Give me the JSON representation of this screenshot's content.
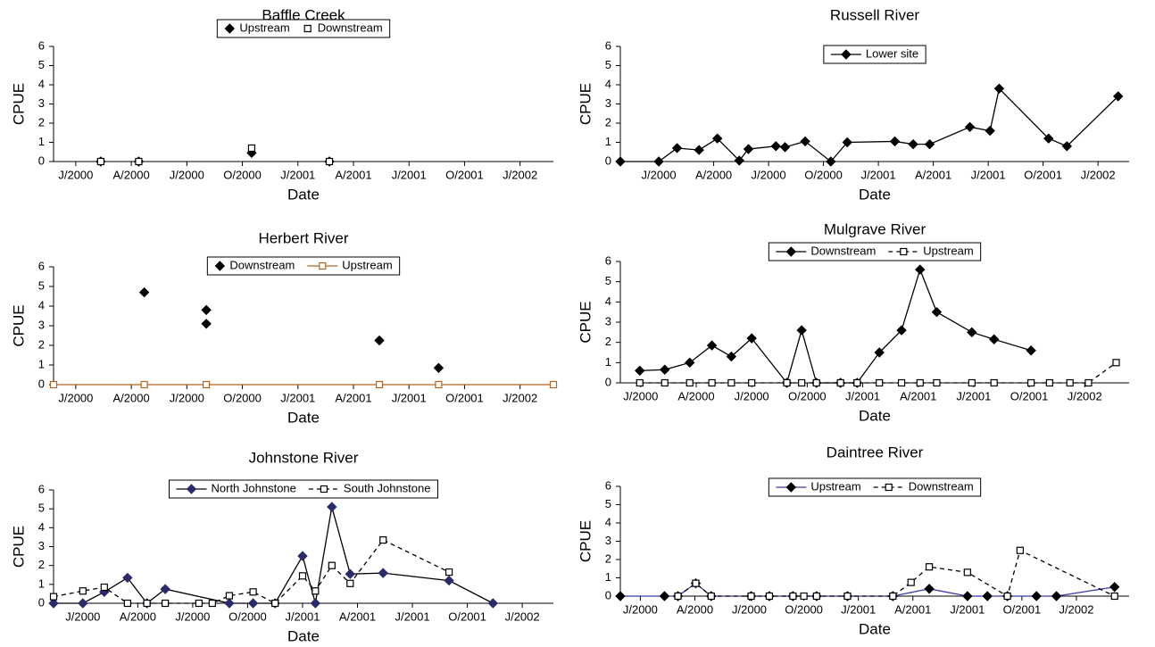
{
  "chart_data": [
    {
      "type": "scatter",
      "title": "Baffle Creek",
      "xlabel": "Date",
      "ylabel": "CPUE",
      "xlim": [
        -1.2,
        25.8
      ],
      "ylim": [
        0,
        6
      ],
      "yticks": [
        0,
        1,
        2,
        3,
        4,
        5,
        6
      ],
      "xticks": [
        {
          "value": 0,
          "label": "J/2000"
        },
        {
          "value": 3,
          "label": "A/2000"
        },
        {
          "value": 6,
          "label": "J/2000"
        },
        {
          "value": 9,
          "label": "O/2000"
        },
        {
          "value": 12,
          "label": "J/2001"
        },
        {
          "value": 15,
          "label": "A/2001"
        },
        {
          "value": 18,
          "label": "J/2001"
        },
        {
          "value": 21,
          "label": "O/2001"
        },
        {
          "value": 24,
          "label": "J/2002"
        }
      ],
      "series": [
        {
          "name": "Upstream",
          "color": "#000000",
          "marker": "diamond",
          "line": false,
          "x": [
            1.35,
            3.4,
            9.5,
            13.7
          ],
          "values": [
            0,
            0,
            0.45,
            0
          ]
        },
        {
          "name": "Downstream",
          "color": "#000000",
          "marker": "square",
          "line": false,
          "x": [
            1.35,
            3.4,
            9.5,
            13.7
          ],
          "values": [
            0,
            0,
            0.7,
            0
          ]
        }
      ]
    },
    {
      "type": "line",
      "title": "Russell River",
      "xlabel": "Date",
      "ylabel": "CPUE",
      "xlim": [
        -2.1,
        25.7
      ],
      "ylim": [
        0,
        6
      ],
      "yticks": [
        0,
        1,
        2,
        3,
        4,
        5,
        6
      ],
      "xticks": [
        {
          "value": 0,
          "label": "J/2000"
        },
        {
          "value": 3,
          "label": "A/2000"
        },
        {
          "value": 6,
          "label": "J/2000"
        },
        {
          "value": 9,
          "label": "O/2000"
        },
        {
          "value": 12,
          "label": "J/2001"
        },
        {
          "value": 15,
          "label": "A/2001"
        },
        {
          "value": 18,
          "label": "J/2001"
        },
        {
          "value": 21,
          "label": "O/2001"
        },
        {
          "value": 24,
          "label": "J/2002"
        }
      ],
      "series": [
        {
          "name": "Lower site",
          "color": "#000000",
          "marker": "diamond",
          "line": true,
          "x": [
            -2.1,
            0,
            1,
            2.2,
            3.2,
            4.4,
            4.9,
            6.4,
            6.9,
            8,
            9.4,
            10.3,
            12.9,
            13.9,
            14.8,
            17,
            18.1,
            18.6,
            21.3,
            22.3,
            25.1
          ],
          "values": [
            0,
            0,
            0.7,
            0.6,
            1.2,
            0.05,
            0.65,
            0.8,
            0.75,
            1.05,
            0,
            1.0,
            1.05,
            0.9,
            0.9,
            1.8,
            1.6,
            3.8,
            1.2,
            0.8,
            3.4
          ]
        }
      ]
    },
    {
      "type": "line",
      "title": "Herbert River",
      "xlabel": "Date",
      "ylabel": "CPUE",
      "xlim": [
        -1.2,
        25.8
      ],
      "ylim": [
        0,
        6
      ],
      "yticks": [
        0,
        1,
        2,
        3,
        4,
        5,
        6
      ],
      "xticks": [
        {
          "value": 0,
          "label": "J/2000"
        },
        {
          "value": 3,
          "label": "A/2000"
        },
        {
          "value": 6,
          "label": "J/2000"
        },
        {
          "value": 9,
          "label": "O/2000"
        },
        {
          "value": 12,
          "label": "J/2001"
        },
        {
          "value": 15,
          "label": "A/2001"
        },
        {
          "value": 18,
          "label": "J/2001"
        },
        {
          "value": 21,
          "label": "O/2001"
        },
        {
          "value": 24,
          "label": "J/2002"
        }
      ],
      "series": [
        {
          "name": "Downstream",
          "color": "#000000",
          "marker": "diamond",
          "line": false,
          "x": [
            3.7,
            7.05,
            7.05,
            16.4,
            19.6
          ],
          "values": [
            4.7,
            3.8,
            3.1,
            2.25,
            0.85
          ]
        },
        {
          "name": "Upstream",
          "color": "#b5651d",
          "marker": "square",
          "line": true,
          "x": [
            -1.2,
            3.7,
            7.05,
            16.4,
            19.6,
            25.8
          ],
          "values": [
            0,
            0,
            0,
            0,
            0,
            0
          ]
        }
      ]
    },
    {
      "type": "line",
      "title": "Mulgrave River",
      "xlabel": "Date",
      "ylabel": "CPUE",
      "xlim": [
        -1.1,
        26.4
      ],
      "ylim": [
        0,
        6
      ],
      "yticks": [
        0,
        1,
        2,
        3,
        4,
        5,
        6
      ],
      "xticks": [
        {
          "value": 0,
          "label": "J/2000"
        },
        {
          "value": 3,
          "label": "A/2000"
        },
        {
          "value": 6,
          "label": "J/2000"
        },
        {
          "value": 9,
          "label": "O/2000"
        },
        {
          "value": 12,
          "label": "J/2001"
        },
        {
          "value": 15,
          "label": "A/2001"
        },
        {
          "value": 18,
          "label": "J/2001"
        },
        {
          "value": 21,
          "label": "O/2001"
        },
        {
          "value": 24,
          "label": "J/2002"
        }
      ],
      "series": [
        {
          "name": "Downstream",
          "color": "#000000",
          "marker": "diamond",
          "line": true,
          "x": [
            -0.05,
            1.3,
            2.65,
            3.85,
            4.9,
            6.0,
            7.9,
            8.7,
            9.5,
            10.8,
            11.7,
            12.9,
            14.1,
            15.1,
            16.0,
            17.9,
            19.1,
            21.1
          ],
          "values": [
            0.6,
            0.65,
            1.0,
            1.85,
            1.3,
            2.2,
            0,
            2.6,
            0,
            0,
            0,
            1.5,
            2.6,
            5.6,
            3.5,
            2.5,
            2.15,
            1.6
          ]
        },
        {
          "name": "Upstream",
          "color": "#000000",
          "marker": "square",
          "line": true,
          "dash": true,
          "x": [
            -0.05,
            1.3,
            2.65,
            3.85,
            4.9,
            6.0,
            7.9,
            8.7,
            9.5,
            10.8,
            11.7,
            12.9,
            14.1,
            15.1,
            16.0,
            17.9,
            19.1,
            21.1,
            22.1,
            23.2,
            24.2,
            25.7
          ],
          "values": [
            0,
            0,
            0,
            0,
            0,
            0,
            0,
            0,
            0,
            0,
            0,
            0,
            0,
            0,
            0,
            0,
            0,
            0,
            0,
            0,
            0,
            1.0
          ]
        }
      ]
    },
    {
      "type": "line",
      "title": "Johnstone River",
      "xlabel": "Date",
      "ylabel": "CPUE",
      "xlim": [
        -1.6,
        25.7
      ],
      "ylim": [
        0,
        6
      ],
      "yticks": [
        0,
        1,
        2,
        3,
        4,
        5,
        6
      ],
      "xticks": [
        {
          "value": 0,
          "label": "J/2000"
        },
        {
          "value": 3,
          "label": "A/2000"
        },
        {
          "value": 6,
          "label": "J/2000"
        },
        {
          "value": 9,
          "label": "O/2000"
        },
        {
          "value": 12,
          "label": "J/2001"
        },
        {
          "value": 15,
          "label": "A/2001"
        },
        {
          "value": 18,
          "label": "J/2001"
        },
        {
          "value": 21,
          "label": "O/2001"
        },
        {
          "value": 24,
          "label": "J/2002"
        }
      ],
      "series": [
        {
          "name": "North Johnstone",
          "color": "#000000",
          "marker": "diamond",
          "markerColor": "#2b2b6b",
          "line": true,
          "x": [
            -1.6,
            0,
            1.17,
            2.44,
            3.5,
            4.5,
            8.0,
            9.3,
            10.5,
            12.0,
            12.7,
            13.6,
            14.6,
            16.4,
            20.0,
            22.4
          ],
          "values": [
            0,
            0,
            0.6,
            1.35,
            0,
            0.75,
            0,
            0,
            0,
            2.5,
            0,
            5.1,
            1.55,
            1.6,
            1.2,
            0
          ]
        },
        {
          "name": "South Johnstone",
          "color": "#000000",
          "marker": "square",
          "line": true,
          "dash": true,
          "x": [
            -1.6,
            0,
            1.17,
            2.44,
            3.5,
            4.5,
            6.34,
            7.07,
            8.0,
            9.3,
            10.5,
            12.0,
            12.7,
            13.6,
            14.6,
            16.4,
            20.0
          ],
          "values": [
            0.35,
            0.65,
            0.85,
            0,
            0,
            0,
            0,
            0,
            0.4,
            0.6,
            0,
            1.45,
            0.65,
            2.0,
            1.05,
            3.35,
            1.65
          ]
        }
      ]
    },
    {
      "type": "line",
      "title": "Daintree River",
      "xlabel": "Date",
      "ylabel": "CPUE",
      "xlim": [
        -1.1,
        26.9
      ],
      "ylim": [
        0,
        6
      ],
      "yticks": [
        0,
        1,
        2,
        3,
        4,
        5,
        6
      ],
      "xticks": [
        {
          "value": 0,
          "label": "J/2000"
        },
        {
          "value": 3,
          "label": "A/2000"
        },
        {
          "value": 6,
          "label": "J/2000"
        },
        {
          "value": 9,
          "label": "O/2000"
        },
        {
          "value": 12,
          "label": "J/2001"
        },
        {
          "value": 15,
          "label": "A/2001"
        },
        {
          "value": 18,
          "label": "J/2001"
        },
        {
          "value": 21,
          "label": "O/2001"
        },
        {
          "value": 24,
          "label": "J/2002"
        }
      ],
      "series": [
        {
          "name": "Upstream",
          "color": "#3a3aa8",
          "marker": "diamond",
          "line": true,
          "x": [
            -1.1,
            1.33,
            2.07,
            3.05,
            3.9,
            6.1,
            7.1,
            8.4,
            9.7,
            11.4,
            13.9,
            15.9,
            18.0,
            19.1,
            20.2,
            21.8,
            22.9,
            26.1
          ],
          "values": [
            0,
            0,
            0,
            0.7,
            0,
            0,
            0,
            0,
            0,
            0,
            0,
            0.4,
            0,
            0,
            0,
            0,
            0,
            0.5
          ]
        },
        {
          "name": "Downstream",
          "color": "#000000",
          "marker": "square",
          "line": true,
          "dash": true,
          "x": [
            2.07,
            3.05,
            3.9,
            6.1,
            7.1,
            8.4,
            9.0,
            9.7,
            11.4,
            13.9,
            14.9,
            15.9,
            18.0,
            20.2,
            20.9,
            26.1
          ],
          "values": [
            0,
            0.7,
            0,
            0,
            0,
            0,
            0,
            0,
            0,
            0,
            0.75,
            1.6,
            1.3,
            0,
            2.5,
            0
          ]
        }
      ]
    }
  ]
}
